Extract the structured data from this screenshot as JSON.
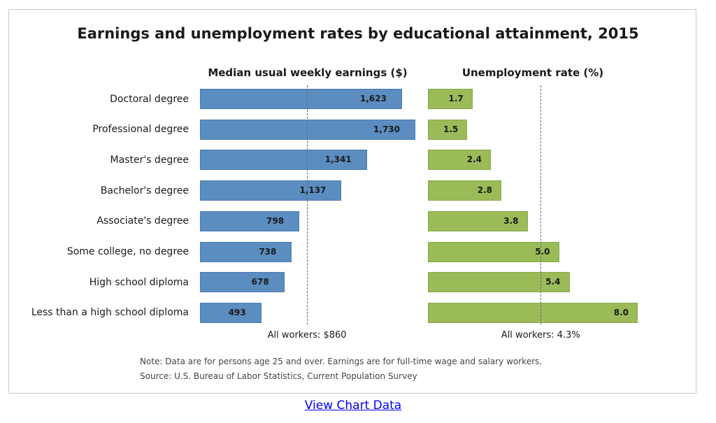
{
  "chart_data": {
    "type": "bar",
    "title": "Earnings and unemployment rates by educational attainment, 2015",
    "categories": [
      "Doctoral degree",
      "Professional degree",
      "Master's degree",
      "Bachelor's degree",
      "Associate's degree",
      "Some college, no degree",
      "High school diploma",
      "Less than a high school diploma"
    ],
    "series": [
      {
        "name": "Median usual weekly earnings ($)",
        "values": [
          1623,
          1730,
          1341,
          1137,
          798,
          738,
          678,
          493
        ],
        "labels": [
          "1,623",
          "1,730",
          "1,341",
          "1,137",
          "798",
          "738",
          "678",
          "493"
        ],
        "reference_value": 860,
        "reference_label": "All workers: $860",
        "color": "#5b8dc1"
      },
      {
        "name": "Unemployment rate (%)",
        "values": [
          1.7,
          1.5,
          2.4,
          2.8,
          3.8,
          5.0,
          5.4,
          8.0
        ],
        "labels": [
          "1.7",
          "1.5",
          "2.4",
          "2.8",
          "3.8",
          "5.0",
          "5.4",
          "8.0"
        ],
        "reference_value": 4.3,
        "reference_label": "All workers: 4.3%",
        "color": "#9bbb59"
      }
    ],
    "orientation": "horizontal",
    "grid": false
  },
  "note": "Note: Data are for persons age 25 and over. Earnings are for full-time wage and salary workers.",
  "source": "Source: U.S. Bureau of Labor Statistics, Current Population Survey",
  "link_text": "View Chart Data"
}
